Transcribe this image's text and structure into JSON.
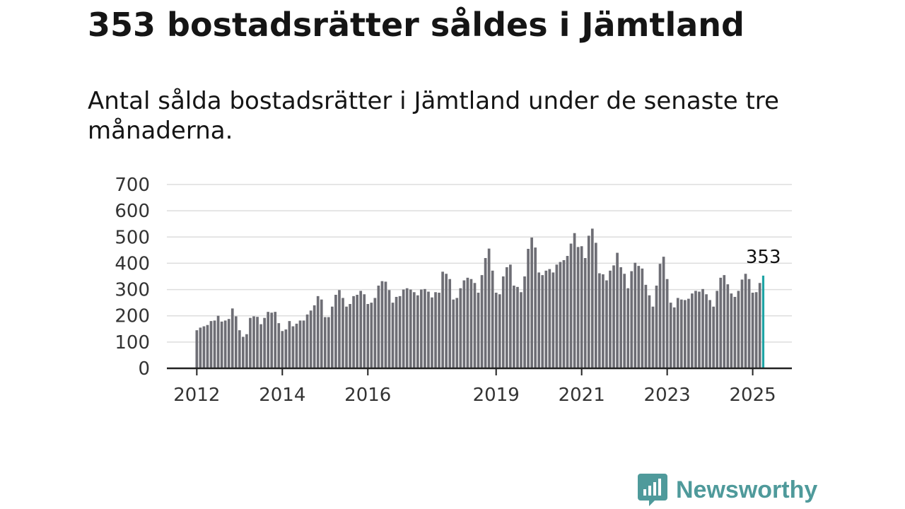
{
  "title": "353 bostadsrätter såldes i Jämtland",
  "subtitle": "Antal sålda bostadsrätter i Jämtland under de senaste tre månaderna.",
  "brand": {
    "name": "Newsworthy",
    "color": "#4f9a9b"
  },
  "colors": {
    "bar": "#6e6e75",
    "highlight": "#1fa4a5",
    "grid": "#dddddd",
    "axis": "#222222"
  },
  "chart_data": {
    "type": "bar",
    "x_start": "2012-01",
    "frequency": "monthly",
    "ylim": [
      0,
      700
    ],
    "yticks": [
      0,
      100,
      200,
      300,
      400,
      500,
      600,
      700
    ],
    "xtick_labels": [
      "2012",
      "2014",
      "2016",
      "2019",
      "2021",
      "2023",
      "2025"
    ],
    "highlight_index": 159,
    "highlight_label": "353",
    "grid": true,
    "values": [
      145,
      155,
      160,
      165,
      180,
      182,
      200,
      178,
      182,
      188,
      228,
      198,
      145,
      120,
      130,
      192,
      198,
      196,
      168,
      192,
      215,
      212,
      215,
      172,
      142,
      148,
      180,
      160,
      170,
      182,
      182,
      205,
      220,
      240,
      275,
      262,
      195,
      195,
      235,
      280,
      298,
      268,
      235,
      245,
      275,
      280,
      295,
      282,
      245,
      250,
      268,
      315,
      332,
      330,
      298,
      250,
      272,
      275,
      300,
      305,
      300,
      290,
      278,
      300,
      302,
      292,
      270,
      290,
      288,
      368,
      360,
      340,
      262,
      268,
      305,
      335,
      345,
      340,
      325,
      288,
      355,
      420,
      456,
      372,
      288,
      282,
      350,
      385,
      395,
      315,
      310,
      290,
      350,
      455,
      498,
      460,
      365,
      355,
      372,
      378,
      365,
      395,
      405,
      412,
      428,
      475,
      515,
      462,
      465,
      420,
      505,
      532,
      478,
      362,
      358,
      335,
      372,
      392,
      440,
      385,
      360,
      305,
      370,
      402,
      390,
      380,
      318,
      278,
      235,
      315,
      398,
      425,
      340,
      250,
      232,
      268,
      262,
      260,
      265,
      285,
      295,
      292,
      302,
      282,
      260,
      235,
      295,
      345,
      355,
      320,
      285,
      272,
      295,
      338,
      360,
      340,
      288,
      290,
      325,
      353
    ]
  }
}
